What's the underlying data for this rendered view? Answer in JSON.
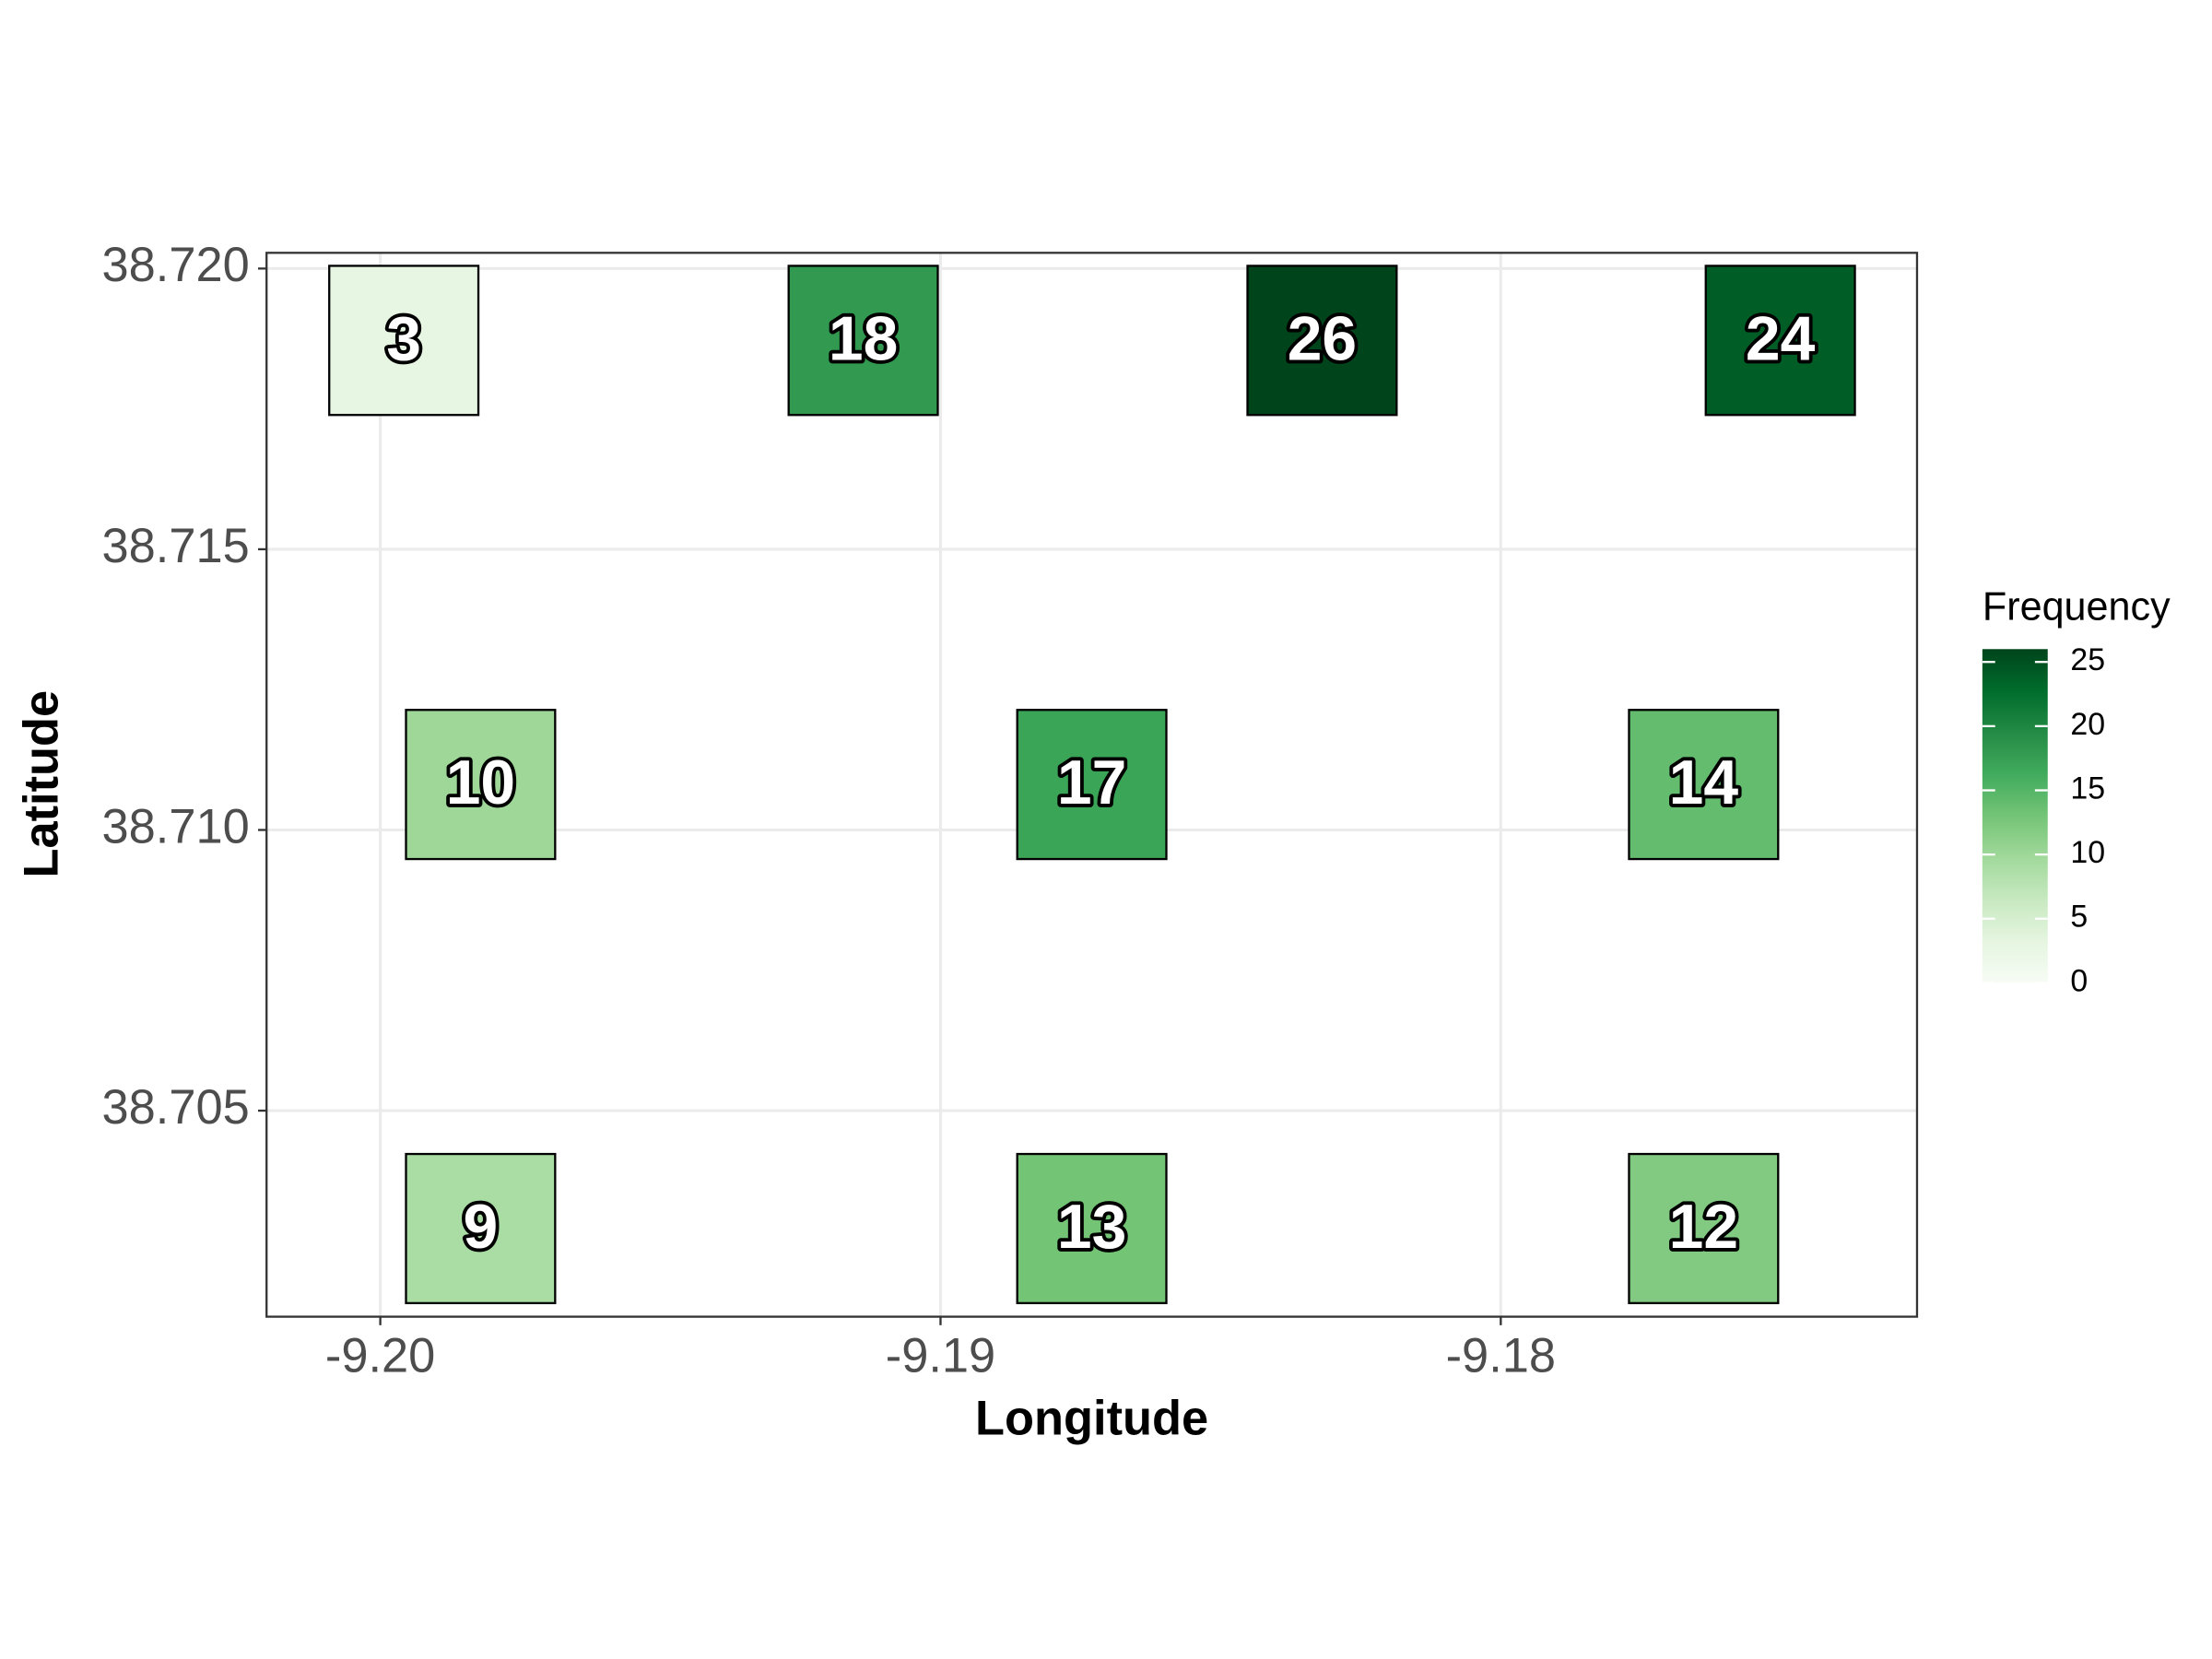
{
  "chart_data": {
    "type": "tile",
    "x_label": "Longitude",
    "y_label": "Latitude",
    "x": [
      -9.19958,
      -9.19138,
      -9.18319,
      -9.17501,
      -9.19821,
      -9.1873,
      -9.17638,
      -9.19821,
      -9.1873,
      -9.17638
    ],
    "y": [
      38.71872,
      38.71872,
      38.71872,
      38.71872,
      38.71081,
      38.71081,
      38.71081,
      38.7029,
      38.7029,
      38.7029
    ],
    "values": [
      3,
      18,
      26,
      24,
      10,
      17,
      14,
      9,
      13,
      12
    ],
    "xlim": [
      -9.20203,
      -9.17257
    ],
    "ylim": [
      38.70133,
      38.72028
    ],
    "xticks": [
      {
        "value": -9.2,
        "label": "-9.20"
      },
      -9.19,
      -9.18
    ],
    "yticks": [
      38.705,
      {
        "value": 38.71,
        "label": "38.710"
      },
      38.715,
      {
        "value": 38.72,
        "label": "38.720"
      }
    ],
    "grid": true,
    "colorbar": {
      "title": "Frequency",
      "lim": [
        0,
        26
      ],
      "ticks": [
        0,
        5,
        10,
        15,
        20,
        25
      ],
      "colors": [
        "#f7fcf5",
        "#e5f5e0",
        "#c7e9c0",
        "#a1d99b",
        "#74c476",
        "#41ab5d",
        "#238b45",
        "#006d2c",
        "#00441b"
      ]
    }
  }
}
